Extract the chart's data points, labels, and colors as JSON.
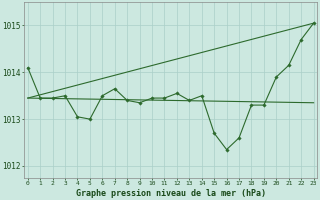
{
  "hours": [
    0,
    1,
    2,
    3,
    4,
    5,
    6,
    7,
    8,
    9,
    10,
    11,
    12,
    13,
    14,
    15,
    16,
    17,
    18,
    19,
    20,
    21,
    22,
    23
  ],
  "main_line": [
    1014.1,
    1013.45,
    1013.45,
    1013.5,
    1013.05,
    1013.0,
    1013.5,
    1013.65,
    1013.4,
    1013.35,
    1013.45,
    1013.45,
    1013.55,
    1013.4,
    1013.5,
    1012.7,
    1012.35,
    1012.6,
    1013.3,
    1013.3,
    1013.9,
    1014.15,
    1014.7,
    1015.05
  ],
  "upper_line_x": [
    0,
    23
  ],
  "upper_line_y": [
    1013.45,
    1015.05
  ],
  "lower_line_x": [
    0,
    23
  ],
  "lower_line_y": [
    1013.45,
    1013.35
  ],
  "line_color": "#2d6a2d",
  "bg_color": "#cce8e0",
  "grid_color": "#aacfc8",
  "xlabel": "Graphe pression niveau de la mer (hPa)",
  "ylim": [
    1011.75,
    1015.5
  ],
  "yticks": [
    1012,
    1013,
    1014,
    1015
  ],
  "xticks": [
    0,
    1,
    2,
    3,
    4,
    5,
    6,
    7,
    8,
    9,
    10,
    11,
    12,
    13,
    14,
    15,
    16,
    17,
    18,
    19,
    20,
    21,
    22,
    23
  ],
  "xlim": [
    -0.3,
    23.3
  ]
}
